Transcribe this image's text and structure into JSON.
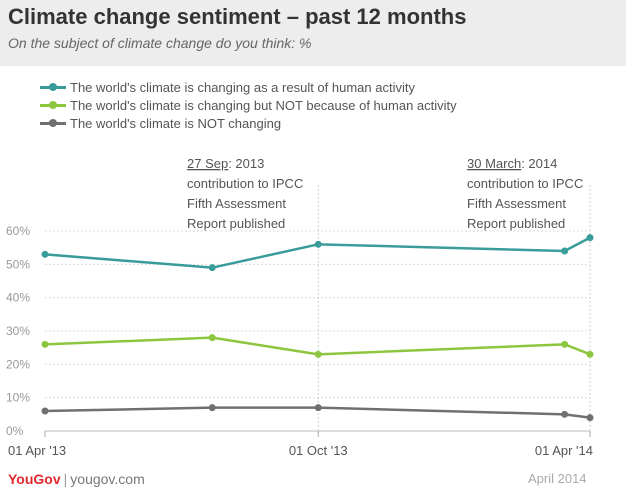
{
  "header": {
    "title": "Climate change sentiment – past 12 months",
    "subtitle": "On the subject of climate change do you think: %"
  },
  "legend": [
    {
      "label": "The world's climate is changing as a result of human activity",
      "color": "#3a9c9a"
    },
    {
      "label": "The world's climate is changing but NOT because of human activity",
      "color": "#8cc63f"
    },
    {
      "label": "The world's climate is NOT changing",
      "color": "#707070"
    }
  ],
  "annotations": [
    {
      "date": "27 Sep",
      "lines": [
        ": 2013",
        "contribution to IPCC",
        "Fifth Assessment",
        "Report published"
      ]
    },
    {
      "date": "30 March",
      "lines": [
        ": 2014",
        "contribution to IPCC",
        "Fifth Assessment",
        "Report published"
      ]
    }
  ],
  "footer": {
    "brand_you": "You",
    "brand_gov": "Gov",
    "url": "yougov.com",
    "date": "April 2014"
  },
  "chart_data": {
    "type": "line",
    "x_ticks": [
      "01 Apr '13",
      "01 Oct '13",
      "01 Apr '14"
    ],
    "x": [
      "2013-04-01",
      "2013-07-22",
      "2013-10-01",
      "2014-03-15",
      "2014-04-01"
    ],
    "series": [
      {
        "name": "The world's climate is changing as a result of human activity",
        "color": "#3a9c9a",
        "values": [
          53,
          49,
          56,
          54,
          58
        ]
      },
      {
        "name": "The world's climate is changing but NOT because of human activity",
        "color": "#8cc63f",
        "values": [
          26,
          28,
          23,
          26,
          23
        ]
      },
      {
        "name": "The world's climate is NOT changing",
        "color": "#707070",
        "values": [
          6,
          7,
          7,
          5,
          4
        ]
      }
    ],
    "y_ticks": [
      "0%",
      "10%",
      "20%",
      "30%",
      "40%",
      "50%",
      "60%"
    ],
    "ylim": [
      0,
      60
    ],
    "grid": true
  }
}
